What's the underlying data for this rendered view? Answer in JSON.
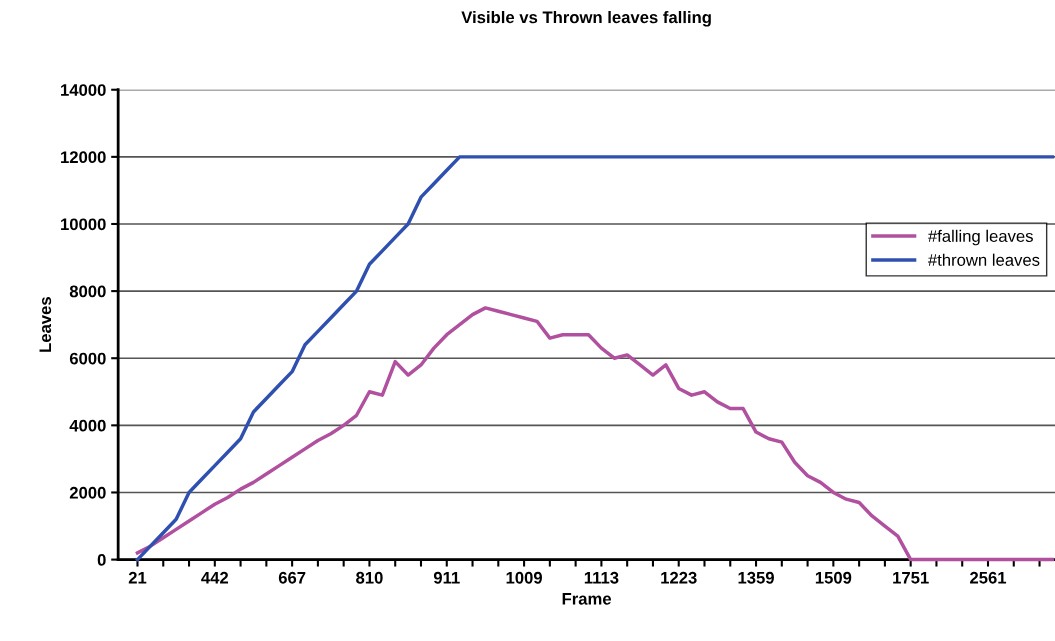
{
  "chart_data": {
    "type": "line",
    "title": "Visible vs Thrown leaves falling",
    "xlabel": "Frame",
    "ylabel": "Leaves",
    "categories": [
      "21",
      null,
      null,
      null,
      null,
      null,
      "442",
      null,
      null,
      null,
      null,
      null,
      "667",
      null,
      null,
      null,
      null,
      null,
      "810",
      null,
      null,
      null,
      null,
      null,
      "911",
      null,
      null,
      null,
      null,
      null,
      "1009",
      null,
      null,
      null,
      null,
      null,
      "1113",
      null,
      null,
      null,
      null,
      null,
      "1223",
      null,
      null,
      null,
      null,
      null,
      "1359",
      null,
      null,
      null,
      null,
      null,
      "1509",
      null,
      null,
      null,
      null,
      null,
      "1751",
      null,
      null,
      null,
      null,
      null,
      "2561",
      null,
      null,
      null,
      null,
      null
    ],
    "series": [
      {
        "name": "#falling leaves",
        "color": "#b0509f",
        "values": [
          200,
          400,
          650,
          900,
          1150,
          1400,
          1650,
          1850,
          2100,
          2300,
          2550,
          2800,
          3050,
          3300,
          3550,
          3750,
          4000,
          4300,
          5000,
          4900,
          5900,
          5500,
          5800,
          6300,
          6700,
          7000,
          7300,
          7500,
          7400,
          7300,
          7200,
          7100,
          6600,
          6700,
          6700,
          6700,
          6300,
          6000,
          6100,
          5800,
          5500,
          5800,
          5100,
          4900,
          5000,
          4700,
          4500,
          4500,
          3800,
          3600,
          3500,
          2900,
          2500,
          2300,
          2000,
          1800,
          1700,
          1300,
          1000,
          700,
          0,
          0,
          0,
          0,
          0,
          0,
          0,
          0,
          0,
          0,
          0,
          0
        ]
      },
      {
        "name": "#thrown leaves",
        "color": "#3050b0",
        "values": [
          0,
          400,
          800,
          1200,
          2000,
          2400,
          2800,
          3200,
          3600,
          4400,
          4800,
          5200,
          5600,
          6400,
          6800,
          7200,
          7600,
          8000,
          8800,
          9200,
          9600,
          10000,
          10800,
          11200,
          11600,
          12000,
          12000,
          12000,
          12000,
          12000,
          12000,
          12000,
          12000,
          12000,
          12000,
          12000,
          12000,
          12000,
          12000,
          12000,
          12000,
          12000,
          12000,
          12000,
          12000,
          12000,
          12000,
          12000,
          12000,
          12000,
          12000,
          12000,
          12000,
          12000,
          12000,
          12000,
          12000,
          12000,
          12000,
          12000,
          12000,
          12000,
          12000,
          12000,
          12000,
          12000,
          12000,
          12000,
          12000,
          12000,
          12000,
          12000
        ]
      }
    ],
    "ylim": [
      0,
      14000
    ],
    "yticks": [
      0,
      2000,
      4000,
      6000,
      8000,
      10000,
      12000,
      14000
    ],
    "grid": "y",
    "legend": "center right",
    "marker": "none",
    "line_style": "solid"
  }
}
